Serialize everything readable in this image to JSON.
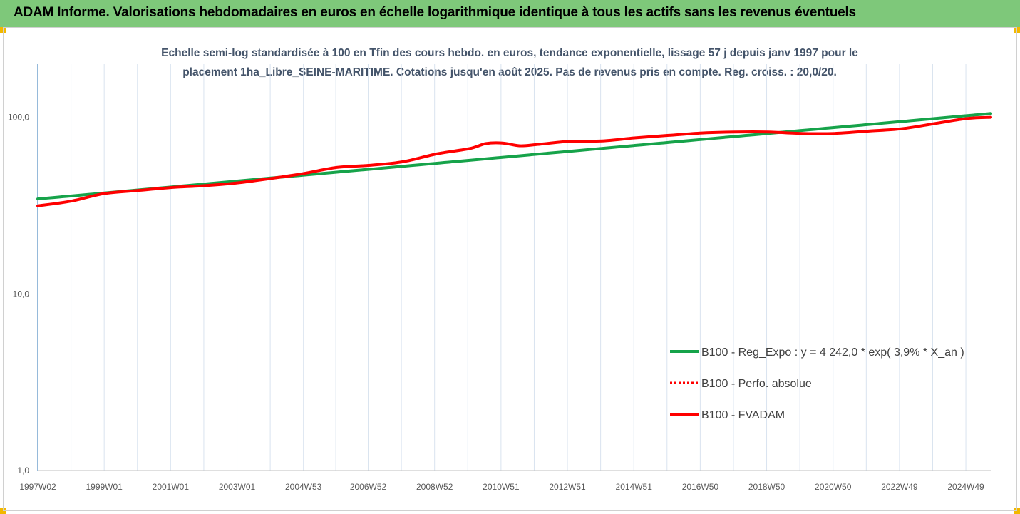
{
  "banner": {
    "title": "ADAM Informe. Valorisations hebdomadaires en euros en échelle logarithmique identique à tous les actifs sans les revenus éventuels",
    "bg_color": "#7ec87a",
    "corner_color": "#f2b800"
  },
  "chart_data": {
    "type": "line",
    "title_line1": "Echelle semi-log standardisée à 100 en Tfin des cours hebdo. en euros, tendance exponentielle, lissage 57 j depuis janv 1997 pour le",
    "title_line2": "placement 1ha_Libre_SEINE-MARITIME.  Cotations jusqu'en août 2025. Pas de revenus pris en compte. Reg. croiss. : 20,0/20.",
    "y_scale": "log",
    "ylim": [
      1,
      200
    ],
    "y_ticks": [
      1,
      10,
      100
    ],
    "y_tick_labels": [
      "1,0",
      "10,0",
      "100,0"
    ],
    "x_range": [
      1997.0,
      2025.7
    ],
    "x_ticks": [
      1997.0,
      1999.0,
      2001.0,
      2003.0,
      2005.0,
      2006.95,
      2008.95,
      2010.95,
      2012.95,
      2014.95,
      2016.95,
      2018.95,
      2020.95,
      2022.95,
      2024.95
    ],
    "x_tick_labels": [
      "1997W02",
      "1999W01",
      "2001W01",
      "2003W01",
      "2004W53",
      "2006W52",
      "2008W52",
      "2010W51",
      "2012W51",
      "2014W51",
      "2016W50",
      "2018W50",
      "2020W50",
      "2022W49",
      "2024W49"
    ],
    "grid": "vertical",
    "legend_position": "right",
    "series": [
      {
        "name": "B100 - Reg_Expo : y = 4 242,0 * exp( 3,9% *  X_an )",
        "color": "#16a34a",
        "style": "solid",
        "x": [
          1997.0,
          2025.7
        ],
        "y": [
          34.5,
          105
        ]
      },
      {
        "name": "B100 - Perfo. absolue",
        "color": "#ff0000",
        "style": "dotted",
        "x": [],
        "y": []
      },
      {
        "name": "B100 - FVADAM",
        "color": "#ff0000",
        "style": "solid",
        "x": [
          1997.0,
          1998.0,
          1999.0,
          2000.0,
          2001.0,
          2002.0,
          2003.0,
          2004.0,
          2005.0,
          2006.0,
          2007.0,
          2008.0,
          2009.0,
          2010.0,
          2010.5,
          2011.0,
          2011.5,
          2012.0,
          2013.0,
          2014.0,
          2015.0,
          2016.0,
          2017.0,
          2018.0,
          2019.0,
          2020.0,
          2021.0,
          2022.0,
          2023.0,
          2024.0,
          2025.0,
          2025.7
        ],
        "y": [
          31.5,
          33.5,
          37,
          38.5,
          40,
          41,
          42.5,
          45,
          48,
          52,
          53.5,
          56,
          62,
          66.5,
          71,
          71.5,
          69,
          70,
          73,
          73.5,
          76.5,
          79,
          81.5,
          82.5,
          82.5,
          81,
          81,
          83.5,
          86,
          92,
          98.5,
          100
        ]
      }
    ]
  }
}
